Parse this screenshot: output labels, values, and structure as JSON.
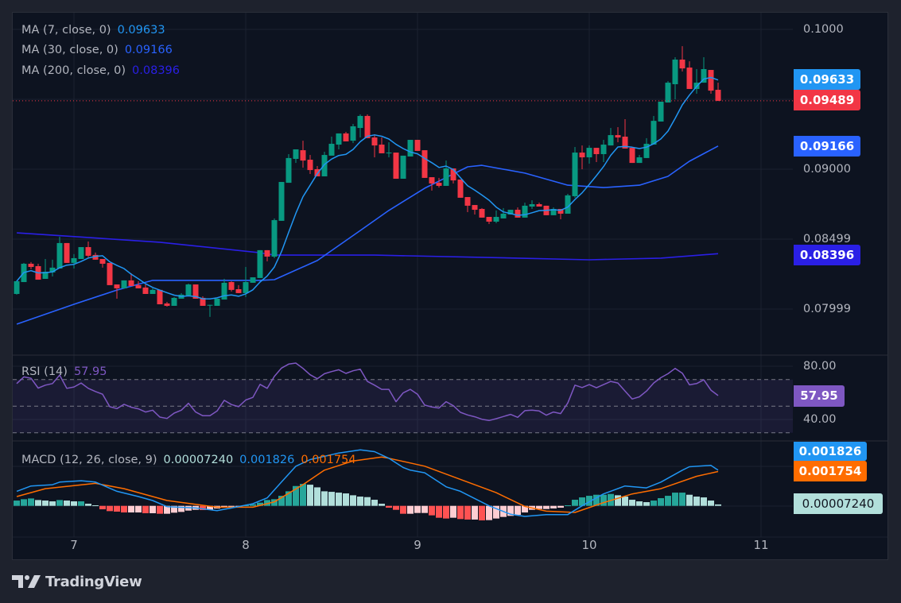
{
  "legend": {
    "ma": [
      {
        "label": "MA (7, close, 0)",
        "value": "0.09633",
        "color": "#2196f3"
      },
      {
        "label": "MA (30, close, 0)",
        "value": "0.09166",
        "color": "#2962ff"
      },
      {
        "label": "MA (200, close, 0)",
        "value": "0.08396",
        "color": "#2a1fe6"
      }
    ],
    "rsi": {
      "label": "RSI (14)",
      "value": "57.95",
      "color": "#7e57c2"
    },
    "macd": {
      "label": "MACD (12, 26, close, 9)",
      "hist": "0.00007240",
      "macd": "0.001826",
      "signal": "0.001754",
      "hist_color": "#b2dfdb",
      "macd_color": "#2196f3",
      "signal_color": "#ff6d00"
    }
  },
  "price_axis": {
    "labels": [
      "0.1000",
      "0.09000",
      "0.08499",
      "0.07999"
    ]
  },
  "rsi_axis": {
    "labels": [
      "80.00",
      "40.00"
    ]
  },
  "time_axis": {
    "labels": [
      "7",
      "8",
      "9",
      "10",
      "11"
    ]
  },
  "value_boxes": {
    "ma7": "0.09633",
    "last": "0.09489",
    "ma30": "0.09166",
    "ma200": "0.08396",
    "rsi": "57.95",
    "macd": "0.001826",
    "signal": "0.001754",
    "hist": "0.00007240"
  },
  "colors": {
    "up": "#089981",
    "down": "#f23645",
    "ma7": "#2196f3",
    "ma30": "#2962ff",
    "ma200": "#2a1fe6",
    "rsi": "#7e57c2",
    "macd": "#2196f3",
    "signal": "#ff6d00"
  },
  "branding": {
    "name": "TradingView"
  },
  "chart_data": {
    "type": "candlestick",
    "interval": "1h",
    "x_start_day": 6.6667,
    "x_ticks": [
      7,
      8,
      9,
      10,
      11
    ],
    "ylim": [
      0.0767,
      0.10125
    ],
    "last_price": 0.09489,
    "ohlc": [
      [
        0.08108,
        0.08205,
        0.08103,
        0.08199
      ],
      [
        0.08193,
        0.0833,
        0.08193,
        0.08324
      ],
      [
        0.08324,
        0.08336,
        0.08285,
        0.08301
      ],
      [
        0.08307,
        0.08324,
        0.0821,
        0.0821
      ],
      [
        0.08216,
        0.08358,
        0.08216,
        0.08267
      ],
      [
        0.08262,
        0.08353,
        0.08233,
        0.08296
      ],
      [
        0.0829,
        0.08517,
        0.0829,
        0.08472
      ],
      [
        0.08472,
        0.08472,
        0.0833,
        0.0833
      ],
      [
        0.0833,
        0.08393,
        0.0829,
        0.08364
      ],
      [
        0.08358,
        0.08443,
        0.08358,
        0.08443
      ],
      [
        0.08443,
        0.08483,
        0.0837,
        0.08381
      ],
      [
        0.08387,
        0.08404,
        0.08353,
        0.08353
      ],
      [
        0.08358,
        0.08358,
        0.08296,
        0.08324
      ],
      [
        0.0833,
        0.0833,
        0.08171,
        0.08171
      ],
      [
        0.08176,
        0.08176,
        0.08074,
        0.08148
      ],
      [
        0.08148,
        0.08205,
        0.08148,
        0.08205
      ],
      [
        0.08205,
        0.08256,
        0.08165,
        0.08165
      ],
      [
        0.08171,
        0.08199,
        0.08148,
        0.08148
      ],
      [
        0.08154,
        0.08176,
        0.08108,
        0.08108
      ],
      [
        0.08108,
        0.08148,
        0.08108,
        0.08137
      ],
      [
        0.08137,
        0.08137,
        0.08034,
        0.08034
      ],
      [
        0.0804,
        0.08051,
        0.08017,
        0.08023
      ],
      [
        0.08023,
        0.08086,
        0.08023,
        0.0808
      ],
      [
        0.08074,
        0.08114,
        0.08074,
        0.08103
      ],
      [
        0.08097,
        0.08182,
        0.08097,
        0.08176
      ],
      [
        0.08176,
        0.08176,
        0.08074,
        0.08074
      ],
      [
        0.0808,
        0.08091,
        0.08023,
        0.08023
      ],
      [
        0.08028,
        0.0803,
        0.07944,
        0.0803
      ],
      [
        0.08023,
        0.08074,
        0.08023,
        0.08074
      ],
      [
        0.08068,
        0.08216,
        0.08068,
        0.08188
      ],
      [
        0.08193,
        0.08199,
        0.08125,
        0.08137
      ],
      [
        0.08142,
        0.08171,
        0.08114,
        0.08114
      ],
      [
        0.08114,
        0.08301,
        0.08086,
        0.08193
      ],
      [
        0.08188,
        0.08227,
        0.08188,
        0.08227
      ],
      [
        0.08222,
        0.08421,
        0.08222,
        0.08421
      ],
      [
        0.08421,
        0.08421,
        0.08341,
        0.08375
      ],
      [
        0.08375,
        0.08648,
        0.08364,
        0.08636
      ],
      [
        0.08631,
        0.08909,
        0.08631,
        0.08909
      ],
      [
        0.08903,
        0.09108,
        0.08903,
        0.0908
      ],
      [
        0.09074,
        0.09142,
        0.09045,
        0.09142
      ],
      [
        0.09136,
        0.09204,
        0.09011,
        0.09062
      ],
      [
        0.09068,
        0.09102,
        0.08966,
        0.08994
      ],
      [
        0.09,
        0.09023,
        0.08949,
        0.08949
      ],
      [
        0.08949,
        0.09125,
        0.08949,
        0.09102
      ],
      [
        0.09097,
        0.09233,
        0.09097,
        0.09182
      ],
      [
        0.09176,
        0.09256,
        0.09142,
        0.09256
      ],
      [
        0.09256,
        0.09267,
        0.09199,
        0.09199
      ],
      [
        0.09204,
        0.09324,
        0.09187,
        0.09307
      ],
      [
        0.09295,
        0.09392,
        0.09227,
        0.09381
      ],
      [
        0.09381,
        0.09392,
        0.09222,
        0.09222
      ],
      [
        0.09227,
        0.0925,
        0.09085,
        0.0917
      ],
      [
        0.09176,
        0.09227,
        0.09114,
        0.09114
      ],
      [
        0.09119,
        0.09193,
        0.09085,
        0.09119
      ],
      [
        0.09119,
        0.09119,
        0.08932,
        0.08932
      ],
      [
        0.08932,
        0.09097,
        0.08932,
        0.09097
      ],
      [
        0.09091,
        0.0921,
        0.09091,
        0.0921
      ],
      [
        0.0921,
        0.0921,
        0.09131,
        0.09131
      ],
      [
        0.09136,
        0.09136,
        0.08938,
        0.08938
      ],
      [
        0.08943,
        0.08943,
        0.08847,
        0.08898
      ],
      [
        0.08903,
        0.08938,
        0.08869,
        0.08881
      ],
      [
        0.08881,
        0.09062,
        0.08881,
        0.09006
      ],
      [
        0.09006,
        0.09006,
        0.08898,
        0.0892
      ],
      [
        0.08926,
        0.08926,
        0.08796,
        0.08796
      ],
      [
        0.08801,
        0.08801,
        0.08693,
        0.08739
      ],
      [
        0.08744,
        0.08744,
        0.08676,
        0.0871
      ],
      [
        0.08716,
        0.08722,
        0.08654,
        0.08654
      ],
      [
        0.08659,
        0.08659,
        0.08608,
        0.08625
      ],
      [
        0.08625,
        0.08705,
        0.08614,
        0.08659
      ],
      [
        0.08648,
        0.08722,
        0.08648,
        0.08682
      ],
      [
        0.08676,
        0.0871,
        0.08676,
        0.0871
      ],
      [
        0.0871,
        0.08727,
        0.08654,
        0.08654
      ],
      [
        0.08654,
        0.08761,
        0.08654,
        0.08739
      ],
      [
        0.08733,
        0.08778,
        0.08716,
        0.0875
      ],
      [
        0.0875,
        0.08761,
        0.08733,
        0.08733
      ],
      [
        0.08739,
        0.08739,
        0.08671,
        0.08671
      ],
      [
        0.08671,
        0.08727,
        0.08671,
        0.08716
      ],
      [
        0.08716,
        0.08716,
        0.08642,
        0.08682
      ],
      [
        0.08682,
        0.08824,
        0.08682,
        0.08813
      ],
      [
        0.08807,
        0.09159,
        0.08796,
        0.09119
      ],
      [
        0.09119,
        0.0917,
        0.09,
        0.09085
      ],
      [
        0.09085,
        0.0917,
        0.0904,
        0.09153
      ],
      [
        0.09153,
        0.09153,
        0.09051,
        0.09108
      ],
      [
        0.09108,
        0.0921,
        0.09051,
        0.09176
      ],
      [
        0.0917,
        0.09295,
        0.0917,
        0.09244
      ],
      [
        0.09244,
        0.09301,
        0.09193,
        0.09227
      ],
      [
        0.09233,
        0.09358,
        0.09148,
        0.09148
      ],
      [
        0.09153,
        0.09153,
        0.09045,
        0.09045
      ],
      [
        0.09045,
        0.09102,
        0.09045,
        0.09085
      ],
      [
        0.0908,
        0.09222,
        0.0908,
        0.09182
      ],
      [
        0.09176,
        0.09381,
        0.09176,
        0.09346
      ],
      [
        0.09341,
        0.09483,
        0.09341,
        0.09483
      ],
      [
        0.09477,
        0.0963,
        0.09477,
        0.09619
      ],
      [
        0.09608,
        0.09801,
        0.095,
        0.09784
      ],
      [
        0.09784,
        0.0988,
        0.09699,
        0.09721
      ],
      [
        0.09727,
        0.09772,
        0.09574,
        0.09574
      ],
      [
        0.09574,
        0.09716,
        0.0954,
        0.09619
      ],
      [
        0.09619,
        0.09801,
        0.09619,
        0.09716
      ],
      [
        0.0971,
        0.0971,
        0.0954,
        0.09562
      ],
      [
        0.09568,
        0.09619,
        0.09488,
        0.09489
      ]
    ],
    "ma30": [
      [
        6.667,
        0.07892
      ],
      [
        7.0,
        0.08034
      ],
      [
        7.25,
        0.08136
      ],
      [
        7.458,
        0.08205
      ],
      [
        7.875,
        0.08205
      ],
      [
        8.083,
        0.08205
      ],
      [
        8.167,
        0.0821
      ],
      [
        8.417,
        0.08347
      ],
      [
        8.667,
        0.08562
      ],
      [
        8.833,
        0.08705
      ],
      [
        9.042,
        0.08864
      ],
      [
        9.292,
        0.09017
      ],
      [
        9.375,
        0.09028
      ],
      [
        9.625,
        0.08972
      ],
      [
        9.875,
        0.08886
      ],
      [
        10.083,
        0.08869
      ],
      [
        10.292,
        0.08886
      ],
      [
        10.458,
        0.08949
      ],
      [
        10.583,
        0.09057
      ],
      [
        10.75,
        0.09166
      ]
    ],
    "ma200": [
      [
        6.667,
        0.08545
      ],
      [
        7.5,
        0.08478
      ],
      [
        8.075,
        0.08404
      ],
      [
        8.167,
        0.08386
      ],
      [
        8.75,
        0.08386
      ],
      [
        9.583,
        0.08364
      ],
      [
        10.0,
        0.08352
      ],
      [
        10.417,
        0.08364
      ],
      [
        10.75,
        0.08396
      ]
    ],
    "rsi": {
      "ylim": [
        23.9,
        88.4
      ],
      "levels": [
        70,
        50,
        30
      ],
      "values": [
        67,
        72,
        71,
        63.6,
        65.8,
        67,
        73.4,
        63.4,
        64.4,
        67.4,
        63.4,
        61,
        59,
        49.6,
        48.2,
        51.4,
        49.2,
        48,
        45.6,
        47,
        41.8,
        40.8,
        44.8,
        47,
        52.2,
        45.6,
        42.8,
        42.8,
        46.4,
        54.4,
        51.2,
        49.6,
        54.6,
        56.6,
        66.4,
        63.4,
        72.4,
        78.6,
        81.6,
        82.4,
        78.4,
        73.6,
        70.6,
        74.4,
        76,
        77.4,
        74.6,
        76.6,
        77.8,
        68.6,
        65.8,
        62.6,
        62.6,
        53.4,
        60,
        62.6,
        59,
        50.8,
        49.4,
        48.6,
        53.4,
        50.4,
        45.4,
        43.4,
        42,
        40.2,
        39.2,
        40.6,
        42.2,
        43.8,
        41.6,
        46.6,
        47,
        46.4,
        43.2,
        45.6,
        44.4,
        52.4,
        65.8,
        64,
        66.2,
        63.8,
        66.2,
        68.6,
        67.4,
        61.4,
        55.4,
        57,
        61.4,
        67.4,
        71.4,
        74.4,
        78.4,
        74.8,
        66,
        67,
        69.8,
        62,
        57.95
      ]
    },
    "macd": {
      "histogram": [
        0.00027,
        0.000338,
        0.000378,
        0.000297,
        0.00027,
        0.00023,
        0.000297,
        0.00027,
        0.00023,
        0.00023,
        0.000108,
        2.7e-05,
        -0.000176,
        -0.00027,
        -0.000297,
        -0.000338,
        -0.000338,
        -0.000338,
        -0.000378,
        -0.000378,
        -0.000405,
        -0.000405,
        -0.000351,
        -0.000311,
        -0.000243,
        -0.000203,
        -0.000216,
        -0.000203,
        -0.000135,
        -9.5e-05,
        -6.8e-05,
        -4.1e-05,
        2.7e-05,
        8.1e-05,
        0.000162,
        0.000297,
        0.000338,
        0.000513,
        0.000743,
        0.001013,
        0.001121,
        0.00108,
        0.000945,
        0.000743,
        0.000716,
        0.000675,
        0.000635,
        0.00054,
        0.000473,
        0.000446,
        0.000311,
        0.000108,
        -9.5e-05,
        -0.000203,
        -0.000405,
        -0.000405,
        -0.000365,
        -0.000365,
        -0.000486,
        -0.000608,
        -0.000648,
        -0.000608,
        -0.000675,
        -0.000702,
        -0.000702,
        -0.000743,
        -0.000729,
        -0.000648,
        -0.000567,
        -0.000513,
        -0.000459,
        -0.000338,
        -0.000203,
        -0.000162,
        -0.000162,
        -0.000135,
        -9.5e-05,
        2.7e-05,
        0.000311,
        0.000432,
        0.000513,
        0.000567,
        0.000567,
        0.000608,
        0.00054,
        0.000473,
        0.000311,
        0.00023,
        0.000189,
        0.00027,
        0.000392,
        0.000513,
        0.000675,
        0.000675,
        0.000567,
        0.000473,
        0.000432,
        0.00027,
        7.24e-05
      ],
      "macd_line": [
        [
          6.667,
          0.000743
        ],
        [
          6.75,
          0.001013
        ],
        [
          6.875,
          0.00108
        ],
        [
          6.917,
          0.001215
        ],
        [
          7.042,
          0.001283
        ],
        [
          7.125,
          0.001215
        ],
        [
          7.25,
          0.000743
        ],
        [
          7.375,
          0.000473
        ],
        [
          7.458,
          0.00027
        ],
        [
          7.542,
          -4.1e-05
        ],
        [
          7.708,
          -0.000108
        ],
        [
          7.833,
          -0.000243
        ],
        [
          7.917,
          -0.000108
        ],
        [
          8.042,
          0.000108
        ],
        [
          8.125,
          0.000405
        ],
        [
          8.208,
          0.001215
        ],
        [
          8.292,
          0.002025
        ],
        [
          8.375,
          0.002363
        ],
        [
          8.542,
          0.0027
        ],
        [
          8.667,
          0.002862
        ],
        [
          8.75,
          0.002768
        ],
        [
          8.833,
          0.00243
        ],
        [
          8.917,
          0.001958
        ],
        [
          8.958,
          0.001823
        ],
        [
          9.042,
          0.001688
        ],
        [
          9.167,
          0.000972
        ],
        [
          9.25,
          0.000743
        ],
        [
          9.417,
          0
        ],
        [
          9.542,
          -0.000432
        ],
        [
          9.625,
          -0.00054
        ],
        [
          9.75,
          -0.000446
        ],
        [
          9.875,
          -0.000446
        ],
        [
          9.958,
          0
        ],
        [
          10.083,
          0.000608
        ],
        [
          10.208,
          0.001013
        ],
        [
          10.333,
          0.000918
        ],
        [
          10.417,
          0.001215
        ],
        [
          10.542,
          0.001823
        ],
        [
          10.583,
          0.001998
        ],
        [
          10.708,
          0.002066
        ],
        [
          10.75,
          0.001826
        ]
      ],
      "signal_line": [
        [
          6.667,
          0.000473
        ],
        [
          6.833,
          0.000878
        ],
        [
          7.125,
          0.001148
        ],
        [
          7.292,
          0.000878
        ],
        [
          7.542,
          0.00027
        ],
        [
          7.833,
          -6.8e-05
        ],
        [
          8.042,
          -6.8e-05
        ],
        [
          8.167,
          0.000203
        ],
        [
          8.333,
          0.00108
        ],
        [
          8.458,
          0.001823
        ],
        [
          8.625,
          0.002295
        ],
        [
          8.792,
          0.002498
        ],
        [
          8.833,
          0.00243
        ],
        [
          9.042,
          0.002025
        ],
        [
          9.25,
          0.00135
        ],
        [
          9.458,
          0.000675
        ],
        [
          9.625,
          -2.7e-05
        ],
        [
          9.75,
          -0.00027
        ],
        [
          9.917,
          -0.000338
        ],
        [
          10.083,
          0.000162
        ],
        [
          10.25,
          0.000608
        ],
        [
          10.417,
          0.000878
        ],
        [
          10.625,
          0.001512
        ],
        [
          10.75,
          0.001754
        ]
      ]
    }
  }
}
